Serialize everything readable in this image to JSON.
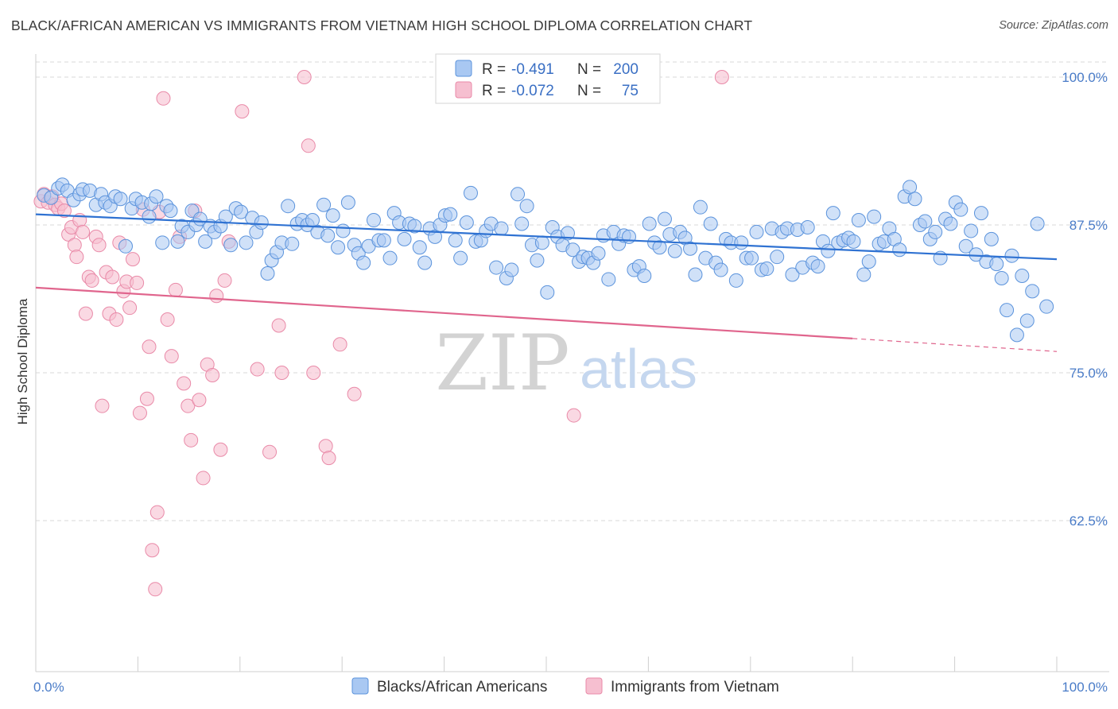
{
  "title": "BLACK/AFRICAN AMERICAN VS IMMIGRANTS FROM VIETNAM HIGH SCHOOL DIPLOMA CORRELATION CHART",
  "source": "Source: ZipAtlas.com",
  "watermark": {
    "zip": "ZIP",
    "atlas": "atlas"
  },
  "colors": {
    "blue_fill": "#a9c8f2",
    "blue_stroke": "#5b93dc",
    "blue_line": "#2f72d2",
    "pink_fill": "#f6bfd0",
    "pink_stroke": "#e98aa8",
    "pink_line": "#e0658d",
    "grid": "#d9d9d9",
    "tick_text": "#4a7cc8"
  },
  "legend": {
    "rows": [
      {
        "r_label": "R =",
        "r_value": "-0.491",
        "n_label": "N =",
        "n_value": "200"
      },
      {
        "r_label": "R =",
        "r_value": "-0.072",
        "n_label": "N =",
        "n_value": "75"
      }
    ]
  },
  "bottom_legend": [
    "Blacks/African Americans",
    "Immigrants from Vietnam"
  ],
  "chart_data": {
    "type": "scatter",
    "title": "BLACK/AFRICAN AMERICAN VS IMMIGRANTS FROM VIETNAM HIGH SCHOOL DIPLOMA CORRELATION CHART",
    "xlabel": "",
    "ylabel": "High School Diploma",
    "xlim": [
      0,
      100
    ],
    "ylim": [
      52,
      101
    ],
    "x_tick_labels": [
      "0.0%",
      "100.0%"
    ],
    "y_ticks": [
      62.5,
      75.0,
      87.5,
      100.0
    ],
    "y_tick_labels": [
      "62.5%",
      "75.0%",
      "87.5%",
      "100.0%"
    ],
    "grid": "horizontal dashed",
    "legend_position": "top-center",
    "series": [
      {
        "name": "Blacks/African Americans",
        "R": -0.491,
        "N": 200,
        "trend": {
          "x": [
            0,
            100
          ],
          "y": [
            88.4,
            84.6
          ]
        },
        "points": [
          [
            0.8,
            90
          ],
          [
            1.5,
            89.8
          ],
          [
            2.2,
            90.6
          ],
          [
            2.6,
            90.9
          ],
          [
            3.1,
            90.4
          ],
          [
            3.7,
            89.6
          ],
          [
            4.3,
            90.1
          ],
          [
            4.6,
            90.5
          ],
          [
            5.3,
            90.4
          ],
          [
            5.9,
            89.2
          ],
          [
            6.4,
            90.1
          ],
          [
            6.8,
            89.4
          ],
          [
            7.3,
            89.1
          ],
          [
            7.8,
            89.9
          ],
          [
            8.3,
            89.7
          ],
          [
            8.8,
            85.7
          ],
          [
            9.4,
            88.9
          ],
          [
            9.8,
            89.7
          ],
          [
            10.4,
            89.4
          ],
          [
            11.1,
            88.2
          ],
          [
            11.3,
            89.3
          ],
          [
            11.8,
            89.9
          ],
          [
            12.4,
            86
          ],
          [
            12.8,
            89.1
          ],
          [
            13.2,
            88.7
          ],
          [
            13.9,
            86.1
          ],
          [
            14.3,
            87.4
          ],
          [
            14.9,
            86.9
          ],
          [
            15.3,
            88.7
          ],
          [
            15.7,
            87.5
          ],
          [
            16.1,
            88
          ],
          [
            16.6,
            86.1
          ],
          [
            17.1,
            87.4
          ],
          [
            17.5,
            86.9
          ],
          [
            18.1,
            87.4
          ],
          [
            18.6,
            88.2
          ],
          [
            19.1,
            85.8
          ],
          [
            19.6,
            88.9
          ],
          [
            20.1,
            88.6
          ],
          [
            20.6,
            86
          ],
          [
            21.2,
            88.1
          ],
          [
            21.6,
            86.9
          ],
          [
            22.1,
            87.7
          ],
          [
            22.7,
            83.4
          ],
          [
            23.1,
            84.5
          ],
          [
            23.6,
            85.2
          ],
          [
            24.1,
            86
          ],
          [
            24.7,
            89.1
          ],
          [
            25.1,
            85.9
          ],
          [
            25.6,
            87.6
          ],
          [
            26.1,
            87.9
          ],
          [
            26.6,
            87.5
          ],
          [
            27.1,
            87.9
          ],
          [
            27.6,
            86.9
          ],
          [
            28.2,
            89.2
          ],
          [
            28.6,
            86.6
          ],
          [
            29.1,
            88.3
          ],
          [
            29.6,
            85.6
          ],
          [
            30.1,
            87
          ],
          [
            30.6,
            89.4
          ],
          [
            31.2,
            85.8
          ],
          [
            31.6,
            85.1
          ],
          [
            32.1,
            84.3
          ],
          [
            32.6,
            85.7
          ],
          [
            33.1,
            87.9
          ],
          [
            33.6,
            86.2
          ],
          [
            34.1,
            86.2
          ],
          [
            34.7,
            84.7
          ],
          [
            35.1,
            88.5
          ],
          [
            35.6,
            87.7
          ],
          [
            36.1,
            86.3
          ],
          [
            36.6,
            87.6
          ],
          [
            37.1,
            87.4
          ],
          [
            37.6,
            85.6
          ],
          [
            38.1,
            84.3
          ],
          [
            38.6,
            87.2
          ],
          [
            39.1,
            86.5
          ],
          [
            39.6,
            87.5
          ],
          [
            40.1,
            88.3
          ],
          [
            40.6,
            88.4
          ],
          [
            41.1,
            86.2
          ],
          [
            41.6,
            84.7
          ],
          [
            42.2,
            87.7
          ],
          [
            42.6,
            90.2
          ],
          [
            43.1,
            86.1
          ],
          [
            43.6,
            86.2
          ],
          [
            44.1,
            87
          ],
          [
            44.6,
            87.6
          ],
          [
            45.1,
            83.9
          ],
          [
            45.6,
            87.2
          ],
          [
            46.1,
            83
          ],
          [
            46.6,
            83.7
          ],
          [
            47.2,
            90.1
          ],
          [
            47.6,
            87.6
          ],
          [
            48.1,
            89.1
          ],
          [
            48.6,
            85.8
          ],
          [
            49.1,
            84.5
          ],
          [
            49.6,
            86
          ],
          [
            50.1,
            81.8
          ],
          [
            50.6,
            87.3
          ],
          [
            51.1,
            86.5
          ],
          [
            51.6,
            85.8
          ],
          [
            52.1,
            86.8
          ],
          [
            52.6,
            85.4
          ],
          [
            53.2,
            84.4
          ],
          [
            53.6,
            84.8
          ],
          [
            54.1,
            84.7
          ],
          [
            54.6,
            84.3
          ],
          [
            55.1,
            85.1
          ],
          [
            55.6,
            86.6
          ],
          [
            56.1,
            82.9
          ],
          [
            56.6,
            86.9
          ],
          [
            57.1,
            85.9
          ],
          [
            57.6,
            86.6
          ],
          [
            58.1,
            86.5
          ],
          [
            58.6,
            83.7
          ],
          [
            59.1,
            84
          ],
          [
            59.6,
            83.2
          ],
          [
            60.1,
            87.6
          ],
          [
            60.6,
            86
          ],
          [
            61.1,
            85.6
          ],
          [
            61.6,
            88
          ],
          [
            62.1,
            86.7
          ],
          [
            62.6,
            85.3
          ],
          [
            63.1,
            86.9
          ],
          [
            63.6,
            86.4
          ],
          [
            64.1,
            85.5
          ],
          [
            64.6,
            83.3
          ],
          [
            65.1,
            89
          ],
          [
            65.6,
            84.7
          ],
          [
            66.1,
            87.6
          ],
          [
            66.6,
            84.3
          ],
          [
            67.1,
            83.7
          ],
          [
            67.6,
            86.3
          ],
          [
            68.1,
            86
          ],
          [
            68.6,
            82.8
          ],
          [
            69.1,
            86
          ],
          [
            69.6,
            84.7
          ],
          [
            70.1,
            84.7
          ],
          [
            70.6,
            86.9
          ],
          [
            71.1,
            83.7
          ],
          [
            71.6,
            83.8
          ],
          [
            72.1,
            87.2
          ],
          [
            72.6,
            84.8
          ],
          [
            73.1,
            86.9
          ],
          [
            73.6,
            87.2
          ],
          [
            74.1,
            83.3
          ],
          [
            74.6,
            87.1
          ],
          [
            75.1,
            83.9
          ],
          [
            75.6,
            87.3
          ],
          [
            76.1,
            84.3
          ],
          [
            76.6,
            84
          ],
          [
            77.1,
            86.1
          ],
          [
            77.6,
            85.3
          ],
          [
            78.1,
            88.5
          ],
          [
            78.6,
            86
          ],
          [
            79.1,
            86.2
          ],
          [
            79.6,
            86.4
          ],
          [
            80.1,
            86.1
          ],
          [
            80.6,
            87.9
          ],
          [
            81.1,
            83.3
          ],
          [
            81.6,
            84.4
          ],
          [
            82.1,
            88.2
          ],
          [
            82.6,
            85.9
          ],
          [
            83.1,
            86.1
          ],
          [
            83.6,
            87.2
          ],
          [
            84.1,
            86.3
          ],
          [
            84.6,
            85.4
          ],
          [
            85.1,
            89.9
          ],
          [
            85.6,
            90.7
          ],
          [
            86.1,
            89.7
          ],
          [
            86.6,
            87.5
          ],
          [
            87.1,
            87.8
          ],
          [
            87.6,
            86.3
          ],
          [
            88.1,
            86.9
          ],
          [
            88.6,
            84.7
          ],
          [
            89.1,
            88
          ],
          [
            89.6,
            87.6
          ],
          [
            90.1,
            89.4
          ],
          [
            90.6,
            88.8
          ],
          [
            91.1,
            85.7
          ],
          [
            91.6,
            87
          ],
          [
            92.1,
            85
          ],
          [
            92.6,
            88.5
          ],
          [
            93.1,
            84.4
          ],
          [
            93.6,
            86.3
          ],
          [
            94.1,
            84.2
          ],
          [
            94.6,
            83
          ],
          [
            95.1,
            80.3
          ],
          [
            95.6,
            84.9
          ],
          [
            96.1,
            78.2
          ],
          [
            96.6,
            83.2
          ],
          [
            97.1,
            79.4
          ],
          [
            97.6,
            81.9
          ],
          [
            98.1,
            87.6
          ],
          [
            99,
            80.6
          ]
        ]
      },
      {
        "name": "Immigrants from Vietnam",
        "R": -0.072,
        "N": 75,
        "trend": {
          "x": [
            0,
            80
          ],
          "y": [
            82.2,
            77.9
          ],
          "dashed_extension": {
            "x": [
              80,
              100
            ],
            "y": [
              77.9,
              76.8
            ]
          }
        },
        "points": [
          [
            0.5,
            89.5
          ],
          [
            0.8,
            90.1
          ],
          [
            1.2,
            89.4
          ],
          [
            1.6,
            89.9
          ],
          [
            1.9,
            89.2
          ],
          [
            2.2,
            88.9
          ],
          [
            2.5,
            89.3
          ],
          [
            2.8,
            88.7
          ],
          [
            3.2,
            86.7
          ],
          [
            3.5,
            87.3
          ],
          [
            3.8,
            85.8
          ],
          [
            4,
            84.8
          ],
          [
            4.3,
            87.9
          ],
          [
            4.6,
            86.9
          ],
          [
            4.9,
            80
          ],
          [
            5.2,
            83.1
          ],
          [
            5.5,
            82.8
          ],
          [
            5.9,
            86.5
          ],
          [
            6.2,
            85.8
          ],
          [
            6.5,
            72.2
          ],
          [
            6.9,
            83.5
          ],
          [
            7.2,
            80
          ],
          [
            7.5,
            83.1
          ],
          [
            7.9,
            79.5
          ],
          [
            8.2,
            86
          ],
          [
            8.6,
            81.9
          ],
          [
            8.9,
            82.7
          ],
          [
            9.2,
            80.5
          ],
          [
            9.5,
            84.6
          ],
          [
            9.9,
            82.6
          ],
          [
            10.2,
            71.6
          ],
          [
            10.5,
            88.8
          ],
          [
            10.9,
            72.8
          ],
          [
            11.1,
            77.2
          ],
          [
            11.4,
            60
          ],
          [
            11.7,
            56.7
          ],
          [
            11.9,
            63.2
          ],
          [
            12.1,
            88.6
          ],
          [
            12.5,
            98.2
          ],
          [
            12.9,
            79.5
          ],
          [
            13.3,
            76.4
          ],
          [
            13.7,
            82
          ],
          [
            14.1,
            86.5
          ],
          [
            14.5,
            74.1
          ],
          [
            14.9,
            72.2
          ],
          [
            15.2,
            69.3
          ],
          [
            15.6,
            88.7
          ],
          [
            16,
            72.7
          ],
          [
            16.4,
            66.1
          ],
          [
            16.8,
            75.7
          ],
          [
            17.3,
            74.8
          ],
          [
            17.7,
            81.5
          ],
          [
            18.1,
            68.5
          ],
          [
            18.5,
            82.8
          ],
          [
            18.9,
            86.1
          ],
          [
            20.2,
            97.1
          ],
          [
            21.7,
            75.3
          ],
          [
            22.9,
            68.3
          ],
          [
            23.8,
            79
          ],
          [
            24.1,
            75
          ],
          [
            26.3,
            100
          ],
          [
            26.7,
            94.2
          ],
          [
            27.2,
            75
          ],
          [
            28.4,
            68.8
          ],
          [
            28.7,
            67.8
          ],
          [
            29.8,
            77.4
          ],
          [
            31.2,
            73.2
          ],
          [
            52.7,
            71.4
          ],
          [
            67.2,
            100
          ]
        ]
      }
    ]
  }
}
